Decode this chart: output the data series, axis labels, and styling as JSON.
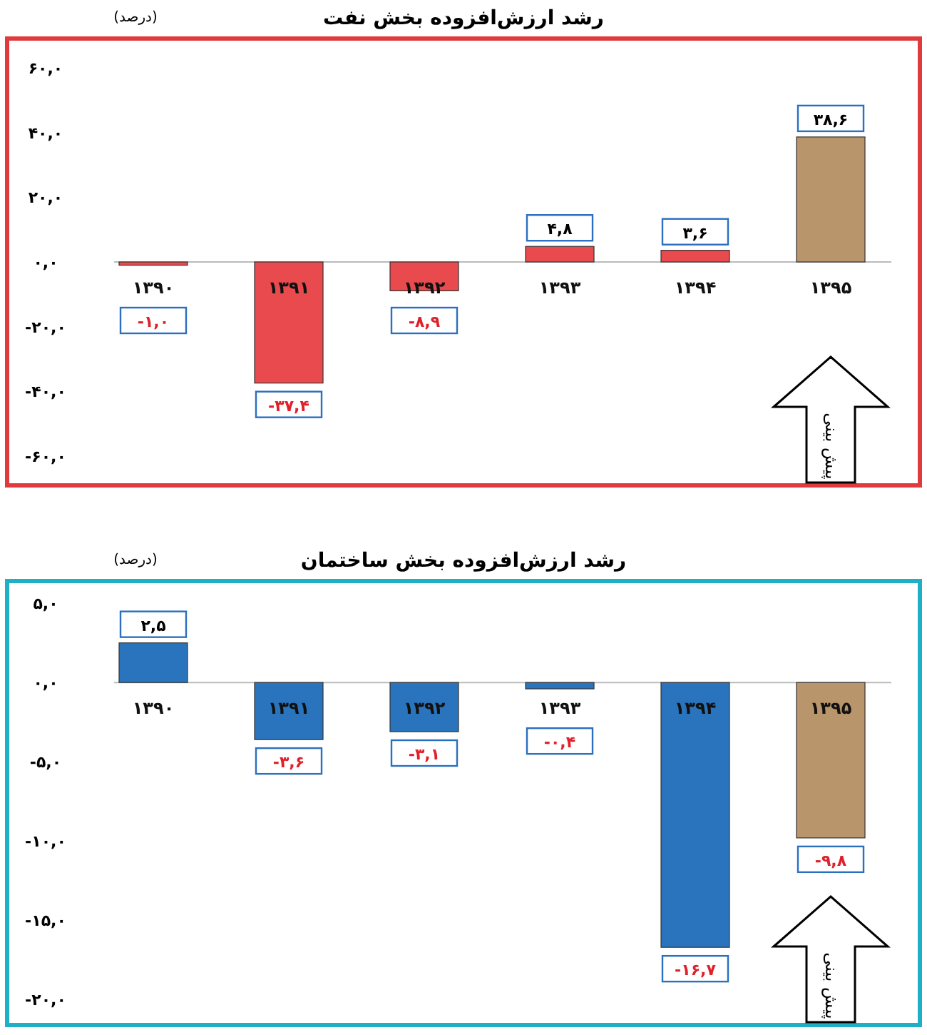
{
  "chart_data": [
    {
      "type": "bar",
      "title": "رشد ارزش‌افزوده بخش نفت",
      "ylabel": "(درصد)",
      "categories": [
        "۱۳۹۰",
        "۱۳۹۱",
        "۱۳۹۲",
        "۱۳۹۳",
        "۱۳۹۴",
        "۱۳۹۵"
      ],
      "values": [
        -1.0,
        -37.4,
        -8.9,
        4.8,
        3.6,
        38.6
      ],
      "value_labels": [
        "-۱,۰",
        "-۳۷,۴",
        "-۸,۹",
        "۴,۸",
        "۳,۶",
        "۳۸,۶"
      ],
      "colors": [
        "#e84a4d",
        "#e84a4d",
        "#e84a4d",
        "#e84a4d",
        "#e84a4d",
        "#b8956a"
      ],
      "ylim": [
        -69,
        69
      ],
      "yticks": [
        {
          "value": 60,
          "label": "۶۰,۰"
        },
        {
          "value": 40,
          "label": "۴۰,۰"
        },
        {
          "value": 20,
          "label": "۲۰,۰"
        },
        {
          "value": 0,
          "label": "۰,۰"
        },
        {
          "value": -20,
          "label": "-۲۰,۰"
        },
        {
          "value": -40,
          "label": "-۴۰,۰"
        },
        {
          "value": -60,
          "label": "-۶۰,۰"
        }
      ],
      "annotations": [
        "پیش بینی"
      ]
    },
    {
      "type": "bar",
      "title": "رشد ارزش‌افزوده بخش ساختمان",
      "ylabel": "(درصد)",
      "categories": [
        "۱۳۹۰",
        "۱۳۹۱",
        "۱۳۹۲",
        "۱۳۹۳",
        "۱۳۹۴",
        "۱۳۹۵"
      ],
      "values": [
        2.5,
        -3.6,
        -3.1,
        -0.4,
        -16.7,
        -9.8
      ],
      "value_labels": [
        "۲,۵",
        "-۳,۶",
        "-۳,۱",
        "-۰,۴",
        "-۱۶,۷",
        "-۹,۸"
      ],
      "colors": [
        "#2a74bd",
        "#2a74bd",
        "#2a74bd",
        "#2a74bd",
        "#2a74bd",
        "#b8956a"
      ],
      "ylim": [
        -21.6,
        6.4
      ],
      "yticks": [
        {
          "value": 5,
          "label": "۵,۰"
        },
        {
          "value": 0,
          "label": "۰,۰"
        },
        {
          "value": -5,
          "label": "-۵,۰"
        },
        {
          "value": -10,
          "label": "-۱۰,۰"
        },
        {
          "value": -15,
          "label": "-۱۵,۰"
        },
        {
          "value": -20,
          "label": "-۲۰,۰"
        }
      ],
      "annotations": [
        "پیش بینی"
      ]
    }
  ]
}
